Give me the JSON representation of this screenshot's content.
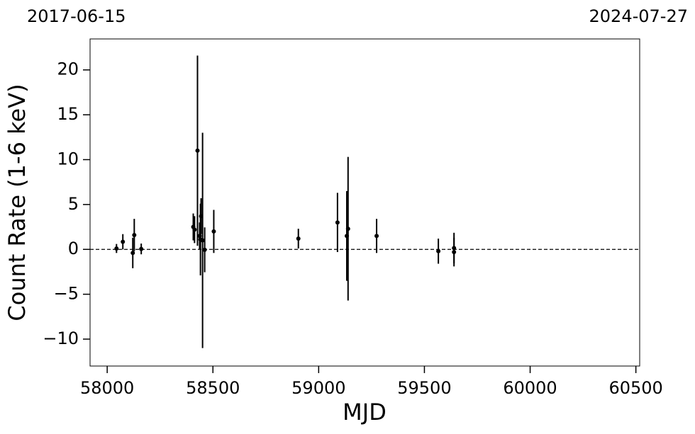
{
  "chart_data": {
    "type": "errorbar",
    "annotations": [
      "2017-06-15",
      "2024-07-27"
    ],
    "x_label": "MJD",
    "y_label": "Count Rate (1-6 keV)",
    "x": [
      58044,
      58074,
      58121,
      58128,
      58161,
      58407,
      58413,
      58427,
      58437,
      58444,
      58441,
      58451,
      58461,
      58504,
      58904,
      59089,
      59133,
      59139,
      59274,
      59566,
      59640,
      59640
    ],
    "values": [
      0.1,
      0.85,
      -0.4,
      1.6,
      0.05,
      2.5,
      2.2,
      11.0,
      1.5,
      3.7,
      1.1,
      1.0,
      -0.05,
      2.0,
      1.2,
      3.0,
      1.5,
      2.3,
      1.5,
      -0.2,
      0.15,
      -0.3
    ],
    "errors": [
      0.5,
      0.85,
      1.7,
      1.8,
      0.6,
      1.5,
      1.5,
      10.6,
      1.5,
      2.0,
      4.0,
      12.0,
      2.5,
      2.4,
      1.1,
      3.3,
      5.0,
      8.0,
      1.9,
      1.4,
      1.7,
      1.6
    ],
    "color": "#000000",
    "reference_line": 0,
    "xlim": [
      57919,
      60518
    ],
    "ylim": [
      -13.0,
      23.45
    ],
    "xticks": [
      58000,
      58500,
      59000,
      59500,
      60000,
      60500
    ],
    "yticks": [
      {
        "value": -10,
        "label": "−10"
      },
      {
        "value": -5,
        "label": "−5"
      },
      0,
      5,
      10,
      15,
      20
    ]
  }
}
